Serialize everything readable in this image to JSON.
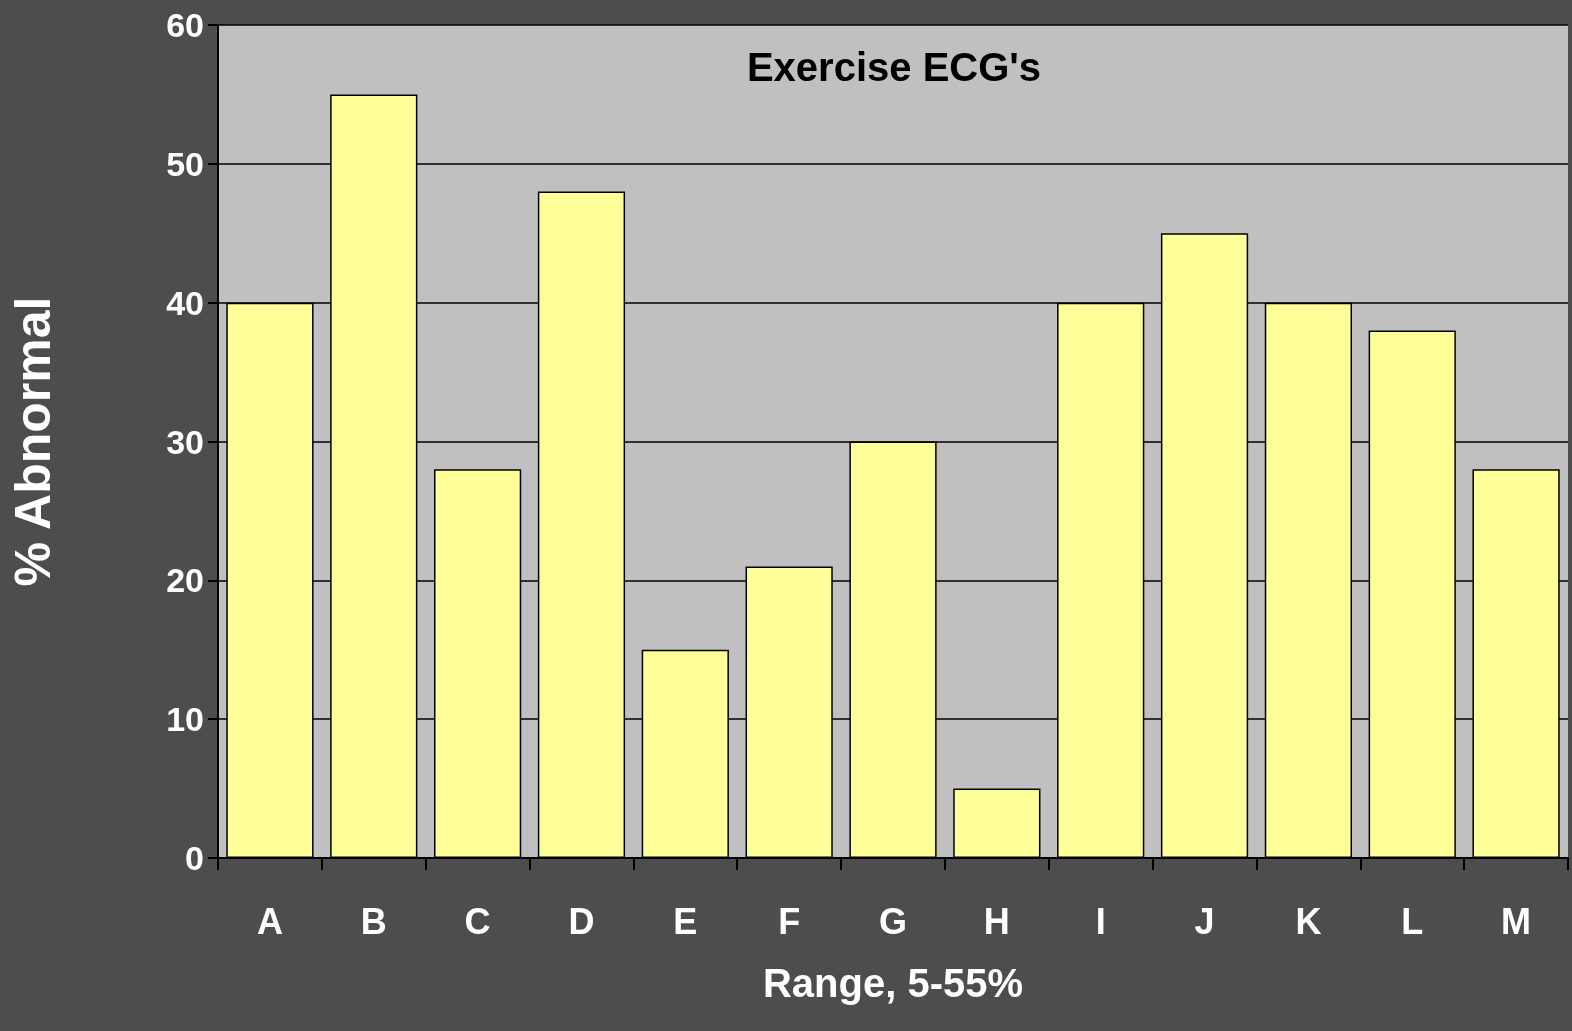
{
  "chart_data": {
    "type": "bar",
    "title": "Exercise ECG's",
    "xlabel": "Range, 5-55%",
    "ylabel": "% Abnormal",
    "categories": [
      "A",
      "B",
      "C",
      "D",
      "E",
      "F",
      "G",
      "H",
      "I",
      "J",
      "K",
      "L",
      "M"
    ],
    "values": [
      40,
      55,
      28,
      48,
      15,
      21,
      30,
      5,
      40,
      45,
      40,
      38,
      28
    ],
    "color": "#ffff99",
    "ylim": [
      0,
      60
    ],
    "yticks": [
      0,
      10,
      20,
      30,
      40,
      50,
      60
    ],
    "grid": "y"
  }
}
